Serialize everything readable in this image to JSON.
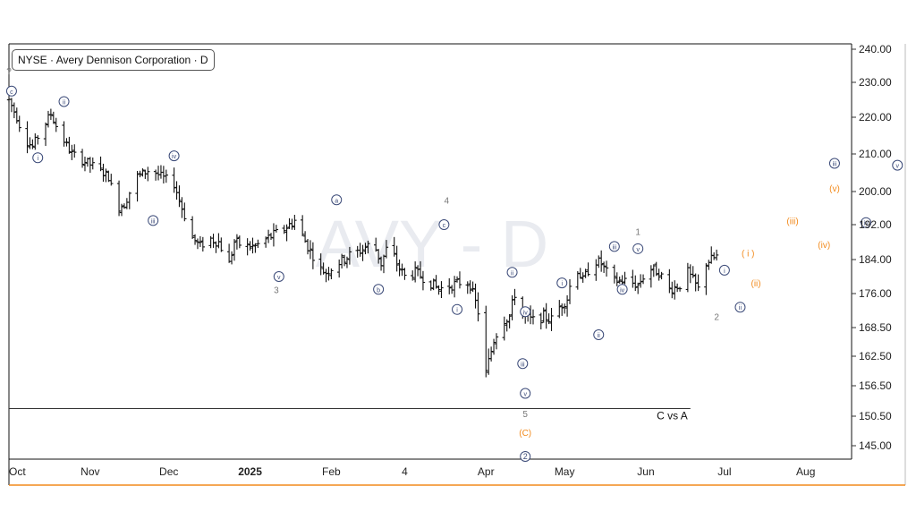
{
  "legend": {
    "exchange": "NYSE",
    "company": "Avery Dennison Corporation",
    "interval": "D",
    "separator": " · "
  },
  "watermark": "AVY - D",
  "colors": {
    "price": "#111111",
    "wave_navy": "#3b4a78",
    "wave_orange": "#f28a1c",
    "wave_gray": "#777777",
    "axis": "#333333",
    "bottom_border": "#f28a1c",
    "watermark": "#e9ebf0"
  },
  "chart_data": {
    "type": "ohlc",
    "title": "NYSE · Avery Dennison Corporation · D",
    "xlabel": "",
    "ylabel": "",
    "ylim": [
      141,
      243
    ],
    "grid": false,
    "legend_position": "top-left",
    "x_ticks": [
      {
        "label": "Oct",
        "day": 0,
        "bold": false
      },
      {
        "label": "Nov",
        "day": 31,
        "bold": false
      },
      {
        "label": "Dec",
        "day": 61,
        "bold": false
      },
      {
        "label": "2025",
        "day": 92,
        "bold": true
      },
      {
        "label": "Feb",
        "day": 123,
        "bold": false
      },
      {
        "label": "4",
        "day": 151,
        "bold": false
      },
      {
        "label": "Apr",
        "day": 182,
        "bold": false
      },
      {
        "label": "May",
        "day": 212,
        "bold": false
      },
      {
        "label": "Jun",
        "day": 243,
        "bold": false
      },
      {
        "label": "Jul",
        "day": 273,
        "bold": false
      },
      {
        "label": "Aug",
        "day": 304,
        "bold": false
      }
    ],
    "y_ticks": [
      "240.00",
      "230.00",
      "220.00",
      "210.00",
      "200.00",
      "192.00",
      "184.00",
      "176.00",
      "168.50",
      "162.50",
      "156.50",
      "150.50",
      "145.00"
    ],
    "price_anchors": [
      [
        0,
        225
      ],
      [
        3,
        220
      ],
      [
        6,
        214
      ],
      [
        9,
        212
      ],
      [
        12,
        216
      ],
      [
        16,
        221
      ],
      [
        19,
        216
      ],
      [
        24,
        210
      ],
      [
        29,
        208
      ],
      [
        34,
        206
      ],
      [
        38,
        204
      ],
      [
        41,
        196
      ],
      [
        44,
        197
      ],
      [
        49,
        204
      ],
      [
        54,
        206
      ],
      [
        58,
        204
      ],
      [
        63,
        202
      ],
      [
        66,
        196
      ],
      [
        70,
        189
      ],
      [
        73,
        187
      ],
      [
        76,
        189
      ],
      [
        80,
        188
      ],
      [
        84,
        183
      ],
      [
        86,
        188
      ],
      [
        90,
        187
      ],
      [
        94,
        187
      ],
      [
        99,
        189
      ],
      [
        105,
        191
      ],
      [
        109,
        193
      ],
      [
        114,
        187
      ],
      [
        116,
        185
      ],
      [
        118,
        182
      ],
      [
        121,
        181
      ],
      [
        125,
        183
      ],
      [
        130,
        185
      ],
      [
        134,
        186
      ],
      [
        139,
        188
      ],
      [
        142,
        183
      ],
      [
        145,
        188
      ],
      [
        148,
        183
      ],
      [
        151,
        180
      ],
      [
        155,
        181
      ],
      [
        160,
        179
      ],
      [
        164,
        177
      ],
      [
        169,
        178
      ],
      [
        174,
        179
      ],
      [
        176,
        178
      ],
      [
        179,
        172
      ],
      [
        180,
        162
      ],
      [
        182,
        159
      ],
      [
        185,
        166
      ],
      [
        188,
        170
      ],
      [
        191,
        171
      ],
      [
        193,
        176
      ],
      [
        196,
        171
      ],
      [
        200,
        170
      ],
      [
        204,
        171
      ],
      [
        208,
        170
      ],
      [
        210,
        173
      ],
      [
        213,
        175
      ],
      [
        216,
        183
      ],
      [
        219,
        179
      ],
      [
        223,
        184
      ],
      [
        226,
        183
      ],
      [
        230,
        179
      ],
      [
        235,
        179
      ],
      [
        240,
        178
      ],
      [
        244,
        182
      ],
      [
        248,
        181
      ],
      [
        252,
        177
      ],
      [
        256,
        178
      ],
      [
        259,
        181
      ],
      [
        263,
        177
      ],
      [
        265,
        183
      ],
      [
        268,
        184
      ],
      [
        271,
        185
      ]
    ],
    "hline": {
      "y": 152,
      "label": "C vs A",
      "x_end_day": 260
    },
    "annotations": [
      {
        "text": "?",
        "day": 0,
        "price": 233.5,
        "style": "gray"
      },
      {
        "text": "c",
        "day": 1,
        "price": 227.5,
        "style": "navy-circle"
      },
      {
        "text": "ii",
        "day": 21,
        "price": 224.5,
        "style": "navy-circle"
      },
      {
        "text": "i",
        "day": 11,
        "price": 209,
        "style": "navy-circle"
      },
      {
        "text": "iv",
        "day": 63,
        "price": 209.5,
        "style": "navy-circle"
      },
      {
        "text": "iii",
        "day": 55,
        "price": 193,
        "style": "navy-circle"
      },
      {
        "text": "v",
        "day": 103,
        "price": 180,
        "style": "navy-circle"
      },
      {
        "text": "3",
        "day": 102,
        "price": 177,
        "style": "gray"
      },
      {
        "text": "a",
        "day": 125,
        "price": 198,
        "style": "navy-circle"
      },
      {
        "text": "b",
        "day": 141,
        "price": 177,
        "style": "navy-circle"
      },
      {
        "text": "4",
        "day": 167,
        "price": 198,
        "style": "gray"
      },
      {
        "text": "c",
        "day": 166,
        "price": 192,
        "style": "navy-circle"
      },
      {
        "text": "i",
        "day": 171,
        "price": 172.5,
        "style": "navy-circle"
      },
      {
        "text": "ii",
        "day": 192,
        "price": 181,
        "style": "navy-circle"
      },
      {
        "text": "iv",
        "day": 197,
        "price": 172,
        "style": "navy-circle"
      },
      {
        "text": "iii",
        "day": 196,
        "price": 161,
        "style": "navy-circle"
      },
      {
        "text": "v",
        "day": 197,
        "price": 155,
        "style": "navy-circle"
      },
      {
        "text": "5",
        "day": 197,
        "price": 151,
        "style": "gray"
      },
      {
        "text": "(C)",
        "day": 197,
        "price": 147.5,
        "style": "orange"
      },
      {
        "text": "2",
        "day": 197,
        "price": 143,
        "style": "navy-circle-2"
      },
      {
        "text": "i",
        "day": 211,
        "price": 178.5,
        "style": "navy-circle"
      },
      {
        "text": "ii",
        "day": 225,
        "price": 167,
        "style": "navy-circle"
      },
      {
        "text": "iii",
        "day": 231,
        "price": 187,
        "style": "navy-circle"
      },
      {
        "text": "iv",
        "day": 234,
        "price": 177,
        "style": "navy-circle"
      },
      {
        "text": "1",
        "day": 240,
        "price": 190.5,
        "style": "gray"
      },
      {
        "text": "v",
        "day": 240,
        "price": 186.5,
        "style": "navy-circle"
      },
      {
        "text": "2",
        "day": 270,
        "price": 171,
        "style": "gray"
      },
      {
        "text": "ii",
        "day": 279,
        "price": 173,
        "style": "navy-circle"
      },
      {
        "text": "i",
        "day": 273,
        "price": 181.5,
        "style": "navy-circle"
      },
      {
        "text": "( i )",
        "day": 282,
        "price": 185.5,
        "style": "orange"
      },
      {
        "text": "(ii)",
        "day": 285,
        "price": 178.5,
        "style": "orange"
      },
      {
        "text": "(iii)",
        "day": 299,
        "price": 193,
        "style": "orange"
      },
      {
        "text": "(iv)",
        "day": 311,
        "price": 187.5,
        "style": "orange"
      },
      {
        "text": "(v)",
        "day": 315,
        "price": 201,
        "style": "orange"
      },
      {
        "text": "iii",
        "day": 315,
        "price": 207.5,
        "style": "navy-circle"
      },
      {
        "text": "iv",
        "day": 327,
        "price": 192.5,
        "style": "navy-circle"
      },
      {
        "text": "v",
        "day": 339,
        "price": 207,
        "style": "navy-circle"
      }
    ]
  }
}
